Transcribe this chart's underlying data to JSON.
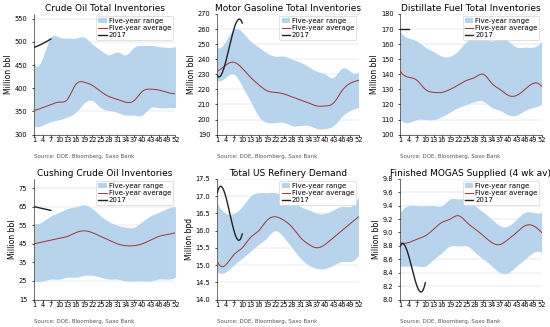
{
  "weeks": [
    1,
    4,
    7,
    10,
    13,
    16,
    19,
    22,
    25,
    28,
    31,
    34,
    37,
    40,
    43,
    46,
    49,
    52
  ],
  "charts": [
    {
      "title": "Crude Oil Total Inventories",
      "ylabel": "Million bbl",
      "ylim": [
        300,
        560
      ],
      "yticks": [
        300,
        350,
        400,
        450,
        500,
        550
      ],
      "range_upper": [
        455,
        465,
        510,
        510,
        508,
        508,
        510,
        495,
        482,
        472,
        478,
        472,
        488,
        492,
        492,
        490,
        488,
        490
      ],
      "range_lower": [
        318,
        320,
        328,
        332,
        338,
        348,
        368,
        373,
        358,
        352,
        348,
        342,
        342,
        342,
        358,
        358,
        358,
        358
      ],
      "avg": [
        352,
        358,
        365,
        370,
        376,
        408,
        413,
        406,
        393,
        382,
        376,
        370,
        373,
        393,
        398,
        396,
        391,
        388
      ],
      "line2017": [
        488,
        496,
        506,
        null,
        null,
        null,
        null,
        null,
        null,
        null,
        null,
        null,
        null,
        null,
        null,
        null,
        null,
        null
      ]
    },
    {
      "title": "Motor Gasoline Total Inventories",
      "ylabel": "Million bbl",
      "ylim": [
        190,
        270
      ],
      "yticks": [
        190,
        200,
        210,
        220,
        230,
        240,
        250,
        260,
        270
      ],
      "range_upper": [
        248,
        252,
        260,
        258,
        252,
        248,
        244,
        242,
        242,
        240,
        238,
        235,
        232,
        230,
        228,
        234,
        232,
        232
      ],
      "range_lower": [
        226,
        228,
        230,
        222,
        212,
        202,
        198,
        198,
        198,
        196,
        196,
        196,
        194,
        194,
        196,
        202,
        206,
        208
      ],
      "avg": [
        232,
        236,
        238,
        234,
        228,
        223,
        219,
        218,
        217,
        215,
        213,
        211,
        209,
        209,
        211,
        219,
        224,
        226
      ],
      "line2017": [
        229,
        238,
        260,
        264,
        null,
        null,
        null,
        null,
        null,
        null,
        null,
        null,
        null,
        null,
        null,
        null,
        null,
        null
      ]
    },
    {
      "title": "Distillate Fuel Total Inventories",
      "ylabel": "Million bbl",
      "ylim": [
        100,
        180
      ],
      "yticks": [
        100,
        110,
        120,
        130,
        140,
        150,
        160,
        170,
        180
      ],
      "range_upper": [
        168,
        164,
        162,
        158,
        155,
        152,
        152,
        156,
        162,
        164,
        164,
        162,
        164,
        162,
        158,
        158,
        158,
        162
      ],
      "range_lower": [
        110,
        108,
        110,
        110,
        110,
        112,
        115,
        118,
        120,
        122,
        122,
        118,
        116,
        113,
        113,
        116,
        118,
        120
      ],
      "avg": [
        142,
        138,
        136,
        130,
        128,
        128,
        130,
        133,
        136,
        138,
        140,
        134,
        130,
        126,
        126,
        130,
        134,
        132
      ],
      "line2017": [
        170,
        170,
        null,
        null,
        null,
        null,
        null,
        null,
        null,
        null,
        null,
        null,
        null,
        null,
        null,
        null,
        null,
        null
      ]
    },
    {
      "title": "Cushing Crude Oil Inventories",
      "ylabel": "Million bbl",
      "ylim": [
        15,
        80
      ],
      "yticks": [
        15,
        25,
        35,
        45,
        55,
        65,
        75
      ],
      "range_upper": [
        56,
        57,
        60,
        62,
        64,
        65,
        66,
        64,
        60,
        57,
        55,
        54,
        54,
        57,
        60,
        62,
        64,
        65
      ],
      "range_lower": [
        25,
        25,
        26,
        26,
        27,
        27,
        28,
        28,
        27,
        26,
        26,
        25,
        25,
        25,
        25,
        26,
        26,
        27
      ],
      "avg": [
        45,
        46,
        47,
        48,
        49,
        51,
        52,
        51,
        49,
        47,
        45,
        44,
        44,
        45,
        47,
        49,
        50,
        51
      ],
      "line2017": [
        65,
        64,
        63,
        null,
        null,
        null,
        null,
        null,
        null,
        null,
        null,
        null,
        null,
        null,
        null,
        null,
        null,
        null
      ]
    },
    {
      "title": "Total US Refinery Demand",
      "ylabel": "Million bpd",
      "ylim": [
        14.0,
        17.5
      ],
      "yticks": [
        14.0,
        14.5,
        15.0,
        15.5,
        16.0,
        16.5,
        17.0,
        17.5
      ],
      "range_upper": [
        16.8,
        16.5,
        16.5,
        16.7,
        17.0,
        17.1,
        17.1,
        17.1,
        17.0,
        16.9,
        16.7,
        16.6,
        16.5,
        16.5,
        16.6,
        16.7,
        16.7,
        17.0
      ],
      "range_lower": [
        14.8,
        14.8,
        15.0,
        15.2,
        15.4,
        15.6,
        15.8,
        16.0,
        15.8,
        15.5,
        15.2,
        15.0,
        14.9,
        14.9,
        15.0,
        15.1,
        15.1,
        15.3
      ],
      "avg": [
        15.1,
        15.0,
        15.3,
        15.5,
        15.8,
        16.0,
        16.3,
        16.4,
        16.3,
        16.1,
        15.8,
        15.6,
        15.5,
        15.6,
        15.8,
        16.0,
        16.2,
        16.4
      ],
      "line2017": [
        17.1,
        17.0,
        16.0,
        15.9,
        null,
        null,
        null,
        null,
        null,
        null,
        null,
        null,
        null,
        null,
        null,
        null,
        null,
        null
      ]
    },
    {
      "title": "Finished MOGAS Supplied (4 wk av)",
      "ylabel": "Million bbl",
      "ylim": [
        8.0,
        9.8
      ],
      "yticks": [
        8.0,
        8.2,
        8.4,
        8.6,
        8.8,
        9.0,
        9.2,
        9.4,
        9.6,
        9.8
      ],
      "range_upper": [
        9.3,
        9.4,
        9.4,
        9.4,
        9.4,
        9.4,
        9.5,
        9.5,
        9.5,
        9.4,
        9.3,
        9.2,
        9.1,
        9.1,
        9.2,
        9.3,
        9.3,
        9.3
      ],
      "range_lower": [
        8.5,
        8.5,
        8.5,
        8.5,
        8.6,
        8.7,
        8.8,
        8.8,
        8.8,
        8.7,
        8.6,
        8.5,
        8.4,
        8.4,
        8.5,
        8.6,
        8.7,
        8.7
      ],
      "avg": [
        8.85,
        8.85,
        8.9,
        8.95,
        9.05,
        9.15,
        9.2,
        9.25,
        9.15,
        9.05,
        8.95,
        8.85,
        8.82,
        8.9,
        9.0,
        9.1,
        9.1,
        9.0
      ],
      "line2017": [
        8.8,
        8.65,
        8.2,
        8.25,
        null,
        null,
        null,
        null,
        null,
        null,
        null,
        null,
        null,
        null,
        null,
        null,
        null,
        null
      ]
    }
  ],
  "xticks": [
    1,
    4,
    7,
    10,
    13,
    16,
    19,
    22,
    25,
    28,
    31,
    34,
    37,
    40,
    43,
    46,
    49,
    52
  ],
  "range_color": "#b8d4ec",
  "avg_color": "#9b3535",
  "line2017_color": "#222222",
  "source_text": "Source: DOE, Bloomberg, Saxo Bank",
  "title_fontsize": 6.5,
  "label_fontsize": 5.5,
  "tick_fontsize": 4.8,
  "legend_fontsize": 5.0,
  "source_fontsize": 4.0
}
